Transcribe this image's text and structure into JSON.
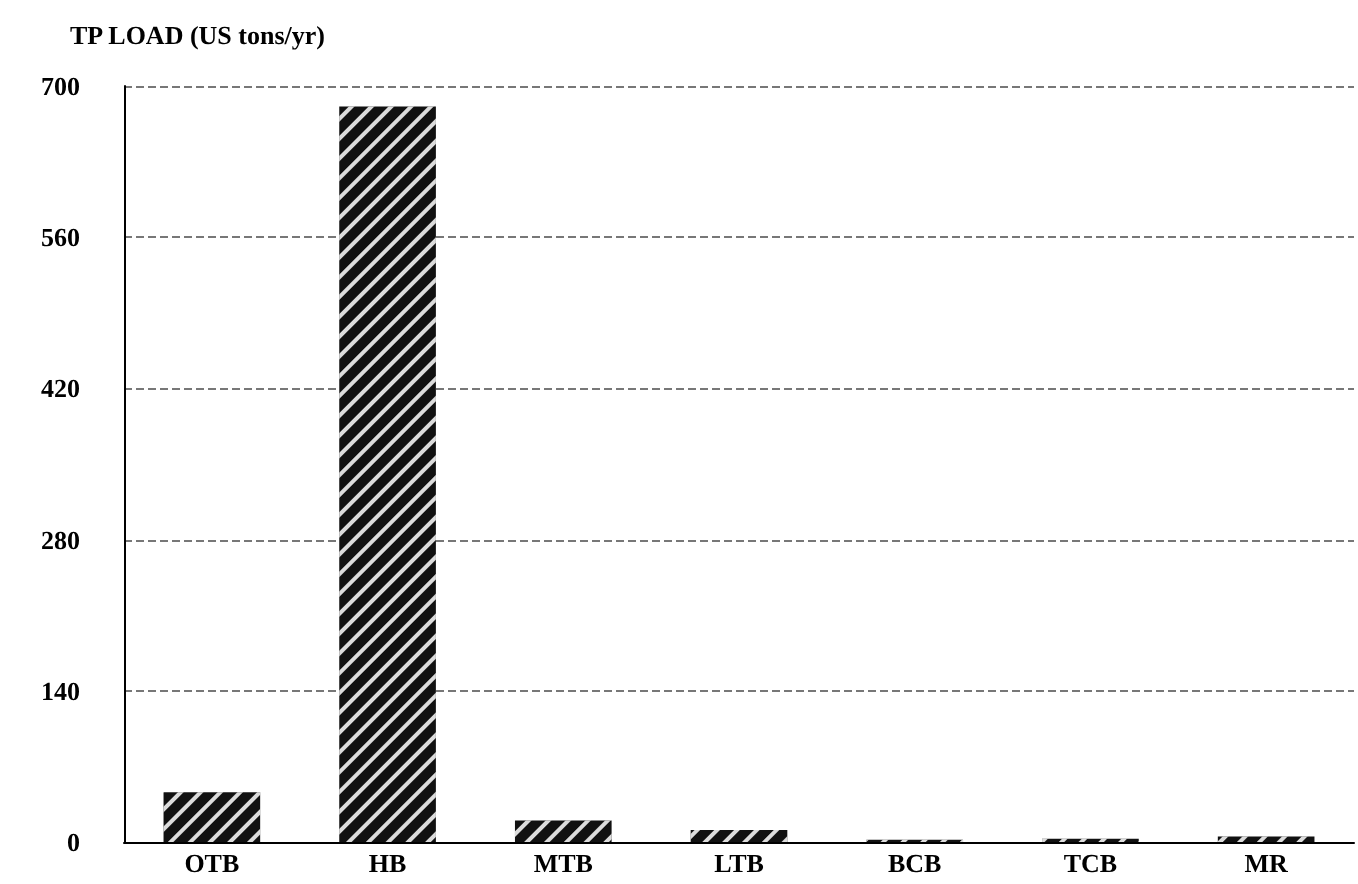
{
  "chart_data": {
    "type": "bar",
    "title": "TP LOAD (US tons/yr)",
    "categories": [
      "OTB",
      "HB",
      "MTB",
      "LTB",
      "BCB",
      "TCB",
      "MR"
    ],
    "values": [
      46,
      681,
      20,
      11,
      2,
      3,
      5
    ],
    "color": "#111111",
    "ylim": [
      0,
      700
    ],
    "yticks": [
      0,
      140,
      280,
      420,
      560,
      700
    ],
    "grid": "y"
  }
}
